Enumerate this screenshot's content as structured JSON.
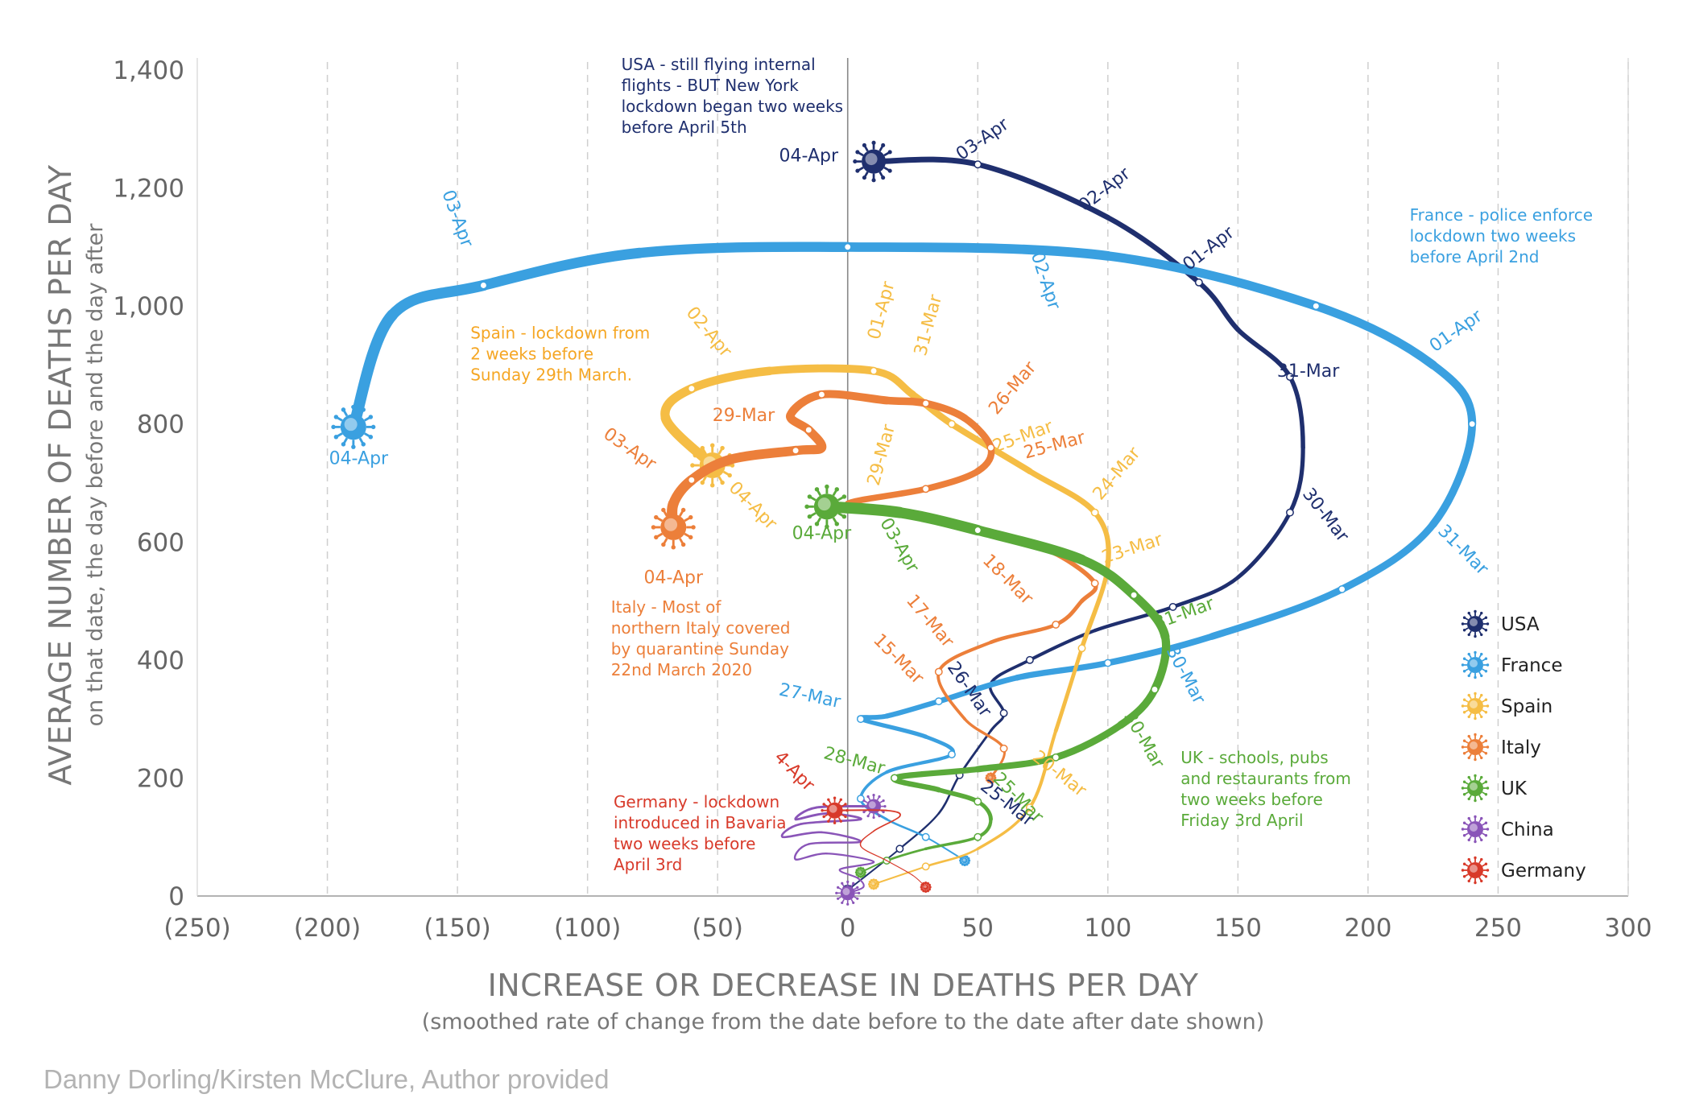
{
  "chart_data": {
    "type": "line",
    "xlabel": "INCREASE OR DECREASE IN DEATHS PER DAY",
    "xlabel_sub": "(smoothed rate of change from the date before to the date after date shown)",
    "ylabel": "AVERAGE NUMBER OF DEATHS PER DAY",
    "ylabel_sub": "on that date, the day before and the day after",
    "xlim": [
      -250,
      300
    ],
    "ylim": [
      0,
      1400
    ],
    "x_ticks": [
      -250,
      -200,
      -150,
      -100,
      -50,
      0,
      50,
      100,
      150,
      200,
      250,
      300
    ],
    "x_tick_labels": [
      "(250)",
      "(200)",
      "(150)",
      "(100)",
      "(50)",
      "0",
      "50",
      "100",
      "150",
      "200",
      "250",
      "300"
    ],
    "y_ticks": [
      0,
      200,
      400,
      600,
      800,
      1000,
      1200,
      1400
    ],
    "y_tick_labels": [
      "0",
      "200",
      "400",
      "600",
      "800",
      "1,000",
      "1,200",
      "1,400"
    ],
    "legend_position": "bottom-right",
    "series": [
      {
        "name": "USA",
        "color": "#1f2f6e",
        "width": 7,
        "start_width": 2,
        "points": [
          [
            0,
            10
          ],
          [
            20,
            80
          ],
          [
            35,
            140
          ],
          [
            43,
            205
          ],
          [
            55,
            280
          ],
          [
            60,
            310
          ],
          [
            55,
            360
          ],
          [
            70,
            400
          ],
          [
            95,
            450
          ],
          [
            125,
            490
          ],
          [
            150,
            540
          ],
          [
            170,
            650
          ],
          [
            175,
            760
          ],
          [
            170,
            880
          ],
          [
            150,
            960
          ],
          [
            135,
            1040
          ],
          [
            100,
            1150
          ],
          [
            50,
            1240
          ],
          [
            10,
            1245
          ]
        ],
        "labels": [
          {
            "text": "25-Mar",
            "x": 60,
            "y": 150,
            "angle": 38
          },
          {
            "text": "26-Mar",
            "x": 45,
            "y": 345,
            "angle": 55
          },
          {
            "text": "30-Mar",
            "x": 182,
            "y": 640,
            "angle": 52
          },
          {
            "text": "31-Mar",
            "x": 177,
            "y": 880,
            "angle": 0
          },
          {
            "text": "01-Apr",
            "x": 140,
            "y": 1090,
            "angle": -38
          },
          {
            "text": "02-Apr",
            "x": 100,
            "y": 1190,
            "angle": -38
          },
          {
            "text": "03-Apr",
            "x": 53,
            "y": 1275,
            "angle": -35
          },
          {
            "text": "04-Apr",
            "x": -15,
            "y": 1245,
            "angle": 0
          }
        ]
      },
      {
        "name": "France",
        "color": "#3aa0e0",
        "width": 14,
        "start_width": 2,
        "points": [
          [
            45,
            60
          ],
          [
            30,
            100
          ],
          [
            15,
            130
          ],
          [
            5,
            165
          ],
          [
            15,
            210
          ],
          [
            40,
            240
          ],
          [
            30,
            270
          ],
          [
            5,
            300
          ],
          [
            15,
            305
          ],
          [
            35,
            330
          ],
          [
            65,
            370
          ],
          [
            100,
            395
          ],
          [
            140,
            440
          ],
          [
            190,
            520
          ],
          [
            225,
            630
          ],
          [
            240,
            800
          ],
          [
            225,
            900
          ],
          [
            180,
            1000
          ],
          [
            100,
            1085
          ],
          [
            0,
            1100
          ],
          [
            -80,
            1090
          ],
          [
            -140,
            1035
          ],
          [
            -175,
            985
          ],
          [
            -190,
            795
          ]
        ],
        "labels": [
          {
            "text": "27-Mar",
            "x": -15,
            "y": 330,
            "angle": 12
          },
          {
            "text": "30-Mar",
            "x": 128,
            "y": 370,
            "angle": 62
          },
          {
            "text": "31-Mar",
            "x": 235,
            "y": 580,
            "angle": 45
          },
          {
            "text": "01-Apr",
            "x": 235,
            "y": 950,
            "angle": -35
          },
          {
            "text": "02-Apr",
            "x": 74,
            "y": 1040,
            "angle": 72
          },
          {
            "text": "03-Apr",
            "x": -152,
            "y": 1145,
            "angle": 70
          },
          {
            "text": "04-Apr",
            "x": -188,
            "y": 732,
            "angle": 0
          }
        ]
      },
      {
        "name": "Spain",
        "color": "#f5bd45",
        "width": 12,
        "start_width": 2,
        "points": [
          [
            10,
            20
          ],
          [
            30,
            50
          ],
          [
            50,
            80
          ],
          [
            70,
            150
          ],
          [
            80,
            280
          ],
          [
            90,
            420
          ],
          [
            100,
            560
          ],
          [
            95,
            650
          ],
          [
            70,
            720
          ],
          [
            40,
            800
          ],
          [
            25,
            850
          ],
          [
            10,
            890
          ],
          [
            -30,
            890
          ],
          [
            -60,
            860
          ],
          [
            -70,
            810
          ],
          [
            -52,
            730
          ]
        ],
        "labels": [
          {
            "text": "20-Mar",
            "x": 80,
            "y": 200,
            "angle": 38
          },
          {
            "text": "23-Mar",
            "x": 110,
            "y": 580,
            "angle": -18
          },
          {
            "text": "24-Mar",
            "x": 105,
            "y": 710,
            "angle": -50
          },
          {
            "text": "25-Mar",
            "x": 68,
            "y": 770,
            "angle": -20
          },
          {
            "text": "29-Mar",
            "x": 15,
            "y": 745,
            "angle": -75
          },
          {
            "text": "31-Mar",
            "x": 33,
            "y": 965,
            "angle": -75
          },
          {
            "text": "01-Apr",
            "x": 15,
            "y": 990,
            "angle": -75
          },
          {
            "text": "02-Apr",
            "x": -55,
            "y": 950,
            "angle": 50
          },
          {
            "text": "04-Apr",
            "x": -38,
            "y": 655,
            "angle": 45
          }
        ]
      },
      {
        "name": "Italy",
        "color": "#ec7f3a",
        "width": 13,
        "start_width": 3,
        "points": [
          [
            55,
            200
          ],
          [
            60,
            250
          ],
          [
            45,
            300
          ],
          [
            35,
            380
          ],
          [
            55,
            430
          ],
          [
            80,
            460
          ],
          [
            90,
            500
          ],
          [
            95,
            530
          ],
          [
            80,
            580
          ],
          [
            60,
            610
          ],
          [
            35,
            640
          ],
          [
            20,
            650
          ],
          [
            0,
            665
          ],
          [
            30,
            690
          ],
          [
            50,
            720
          ],
          [
            55,
            760
          ],
          [
            45,
            810
          ],
          [
            30,
            835
          ],
          [
            15,
            840
          ],
          [
            -10,
            850
          ],
          [
            -22,
            815
          ],
          [
            -15,
            790
          ],
          [
            -10,
            760
          ],
          [
            -20,
            755
          ],
          [
            -45,
            740
          ],
          [
            -60,
            705
          ],
          [
            -67,
            665
          ],
          [
            -67,
            625
          ]
        ],
        "labels": [
          {
            "text": "15-Mar",
            "x": 18,
            "y": 395,
            "angle": 45
          },
          {
            "text": "17-Mar",
            "x": 30,
            "y": 460,
            "angle": 50
          },
          {
            "text": "18-Mar",
            "x": 60,
            "y": 530,
            "angle": 45
          },
          {
            "text": "25-Mar",
            "x": 80,
            "y": 755,
            "angle": -15
          },
          {
            "text": "26-Mar",
            "x": 65,
            "y": 855,
            "angle": -50
          },
          {
            "text": "29-Mar",
            "x": -40,
            "y": 805,
            "angle": 0
          },
          {
            "text": "03-Apr",
            "x": -85,
            "y": 750,
            "angle": 35
          },
          {
            "text": "04-Apr",
            "x": -67,
            "y": 530,
            "angle": 0
          }
        ]
      },
      {
        "name": "UK",
        "color": "#5aaa3a",
        "width": 14,
        "start_width": 2,
        "points": [
          [
            5,
            40
          ],
          [
            15,
            60
          ],
          [
            30,
            80
          ],
          [
            50,
            100
          ],
          [
            55,
            130
          ],
          [
            50,
            160
          ],
          [
            35,
            180
          ],
          [
            18,
            200
          ],
          [
            50,
            215
          ],
          [
            80,
            235
          ],
          [
            105,
            290
          ],
          [
            118,
            350
          ],
          [
            122,
            440
          ],
          [
            110,
            510
          ],
          [
            90,
            570
          ],
          [
            50,
            620
          ],
          [
            20,
            650
          ],
          [
            -8,
            660
          ]
        ],
        "labels": [
          {
            "text": "25-Mar",
            "x": 64,
            "y": 160,
            "angle": 45
          },
          {
            "text": "28-Mar",
            "x": 2,
            "y": 220,
            "angle": 15
          },
          {
            "text": "30-Mar",
            "x": 112,
            "y": 260,
            "angle": 60
          },
          {
            "text": "31-Mar",
            "x": 130,
            "y": 470,
            "angle": -20
          },
          {
            "text": "03-Apr",
            "x": 18,
            "y": 590,
            "angle": 60
          },
          {
            "text": "04-Apr",
            "x": -10,
            "y": 605,
            "angle": 0
          }
        ]
      },
      {
        "name": "China",
        "color": "#8a55b8",
        "width": 3,
        "start_width": 2,
        "points": [
          [
            0,
            5
          ],
          [
            6,
            15
          ],
          [
            4,
            30
          ],
          [
            -3,
            45
          ],
          [
            10,
            58
          ],
          [
            -8,
            72
          ],
          [
            -20,
            62
          ],
          [
            -15,
            88
          ],
          [
            5,
            92
          ],
          [
            -10,
            108
          ],
          [
            -25,
            100
          ],
          [
            -18,
            122
          ],
          [
            5,
            130
          ],
          [
            -8,
            140
          ],
          [
            -20,
            130
          ],
          [
            -12,
            150
          ],
          [
            10,
            152
          ]
        ],
        "labels": []
      },
      {
        "name": "Germany",
        "color": "#d83a2a",
        "width": 2,
        "start_width": 1,
        "points": [
          [
            30,
            15
          ],
          [
            25,
            35
          ],
          [
            15,
            60
          ],
          [
            5,
            85
          ],
          [
            10,
            110
          ],
          [
            20,
            135
          ],
          [
            15,
            145
          ],
          [
            -5,
            145
          ]
        ],
        "labels": [
          {
            "text": "4-Apr",
            "x": -22,
            "y": 205,
            "angle": 45
          }
        ]
      }
    ],
    "annotations": [
      {
        "color": "#1f2f6e",
        "x": -87,
        "y": 1400,
        "lines": [
          "USA - still flying internal",
          "flights - BUT New York",
          "lockdown began two weeks",
          "before April 5th"
        ]
      },
      {
        "color": "#3aa0e0",
        "x": 216,
        "y": 1145,
        "lines": [
          "France - police enforce",
          "lockdown two weeks",
          "before April 2nd"
        ]
      },
      {
        "color": "#f5a623",
        "x": -145,
        "y": 945,
        "lines": [
          "Spain - lockdown from",
          "2 weeks before",
          "Sunday 29th March."
        ]
      },
      {
        "color": "#ec7f3a",
        "x": -91,
        "y": 480,
        "lines": [
          "Italy - Most of",
          "northern Italy covered",
          "by quarantine Sunday",
          "22nd March 2020"
        ]
      },
      {
        "color": "#5aaa3a",
        "x": 128,
        "y": 225,
        "lines": [
          "UK - schools, pubs",
          "and restaurants from",
          "two weeks before",
          "Friday 3rd April"
        ]
      },
      {
        "color": "#d83a2a",
        "x": -90,
        "y": 150,
        "lines": [
          "Germany - lockdown",
          "introduced in Bavaria",
          "two weeks before",
          "April 3rd"
        ]
      }
    ]
  },
  "credit": "Danny Dorling/Kirsten McClure, Author provided"
}
